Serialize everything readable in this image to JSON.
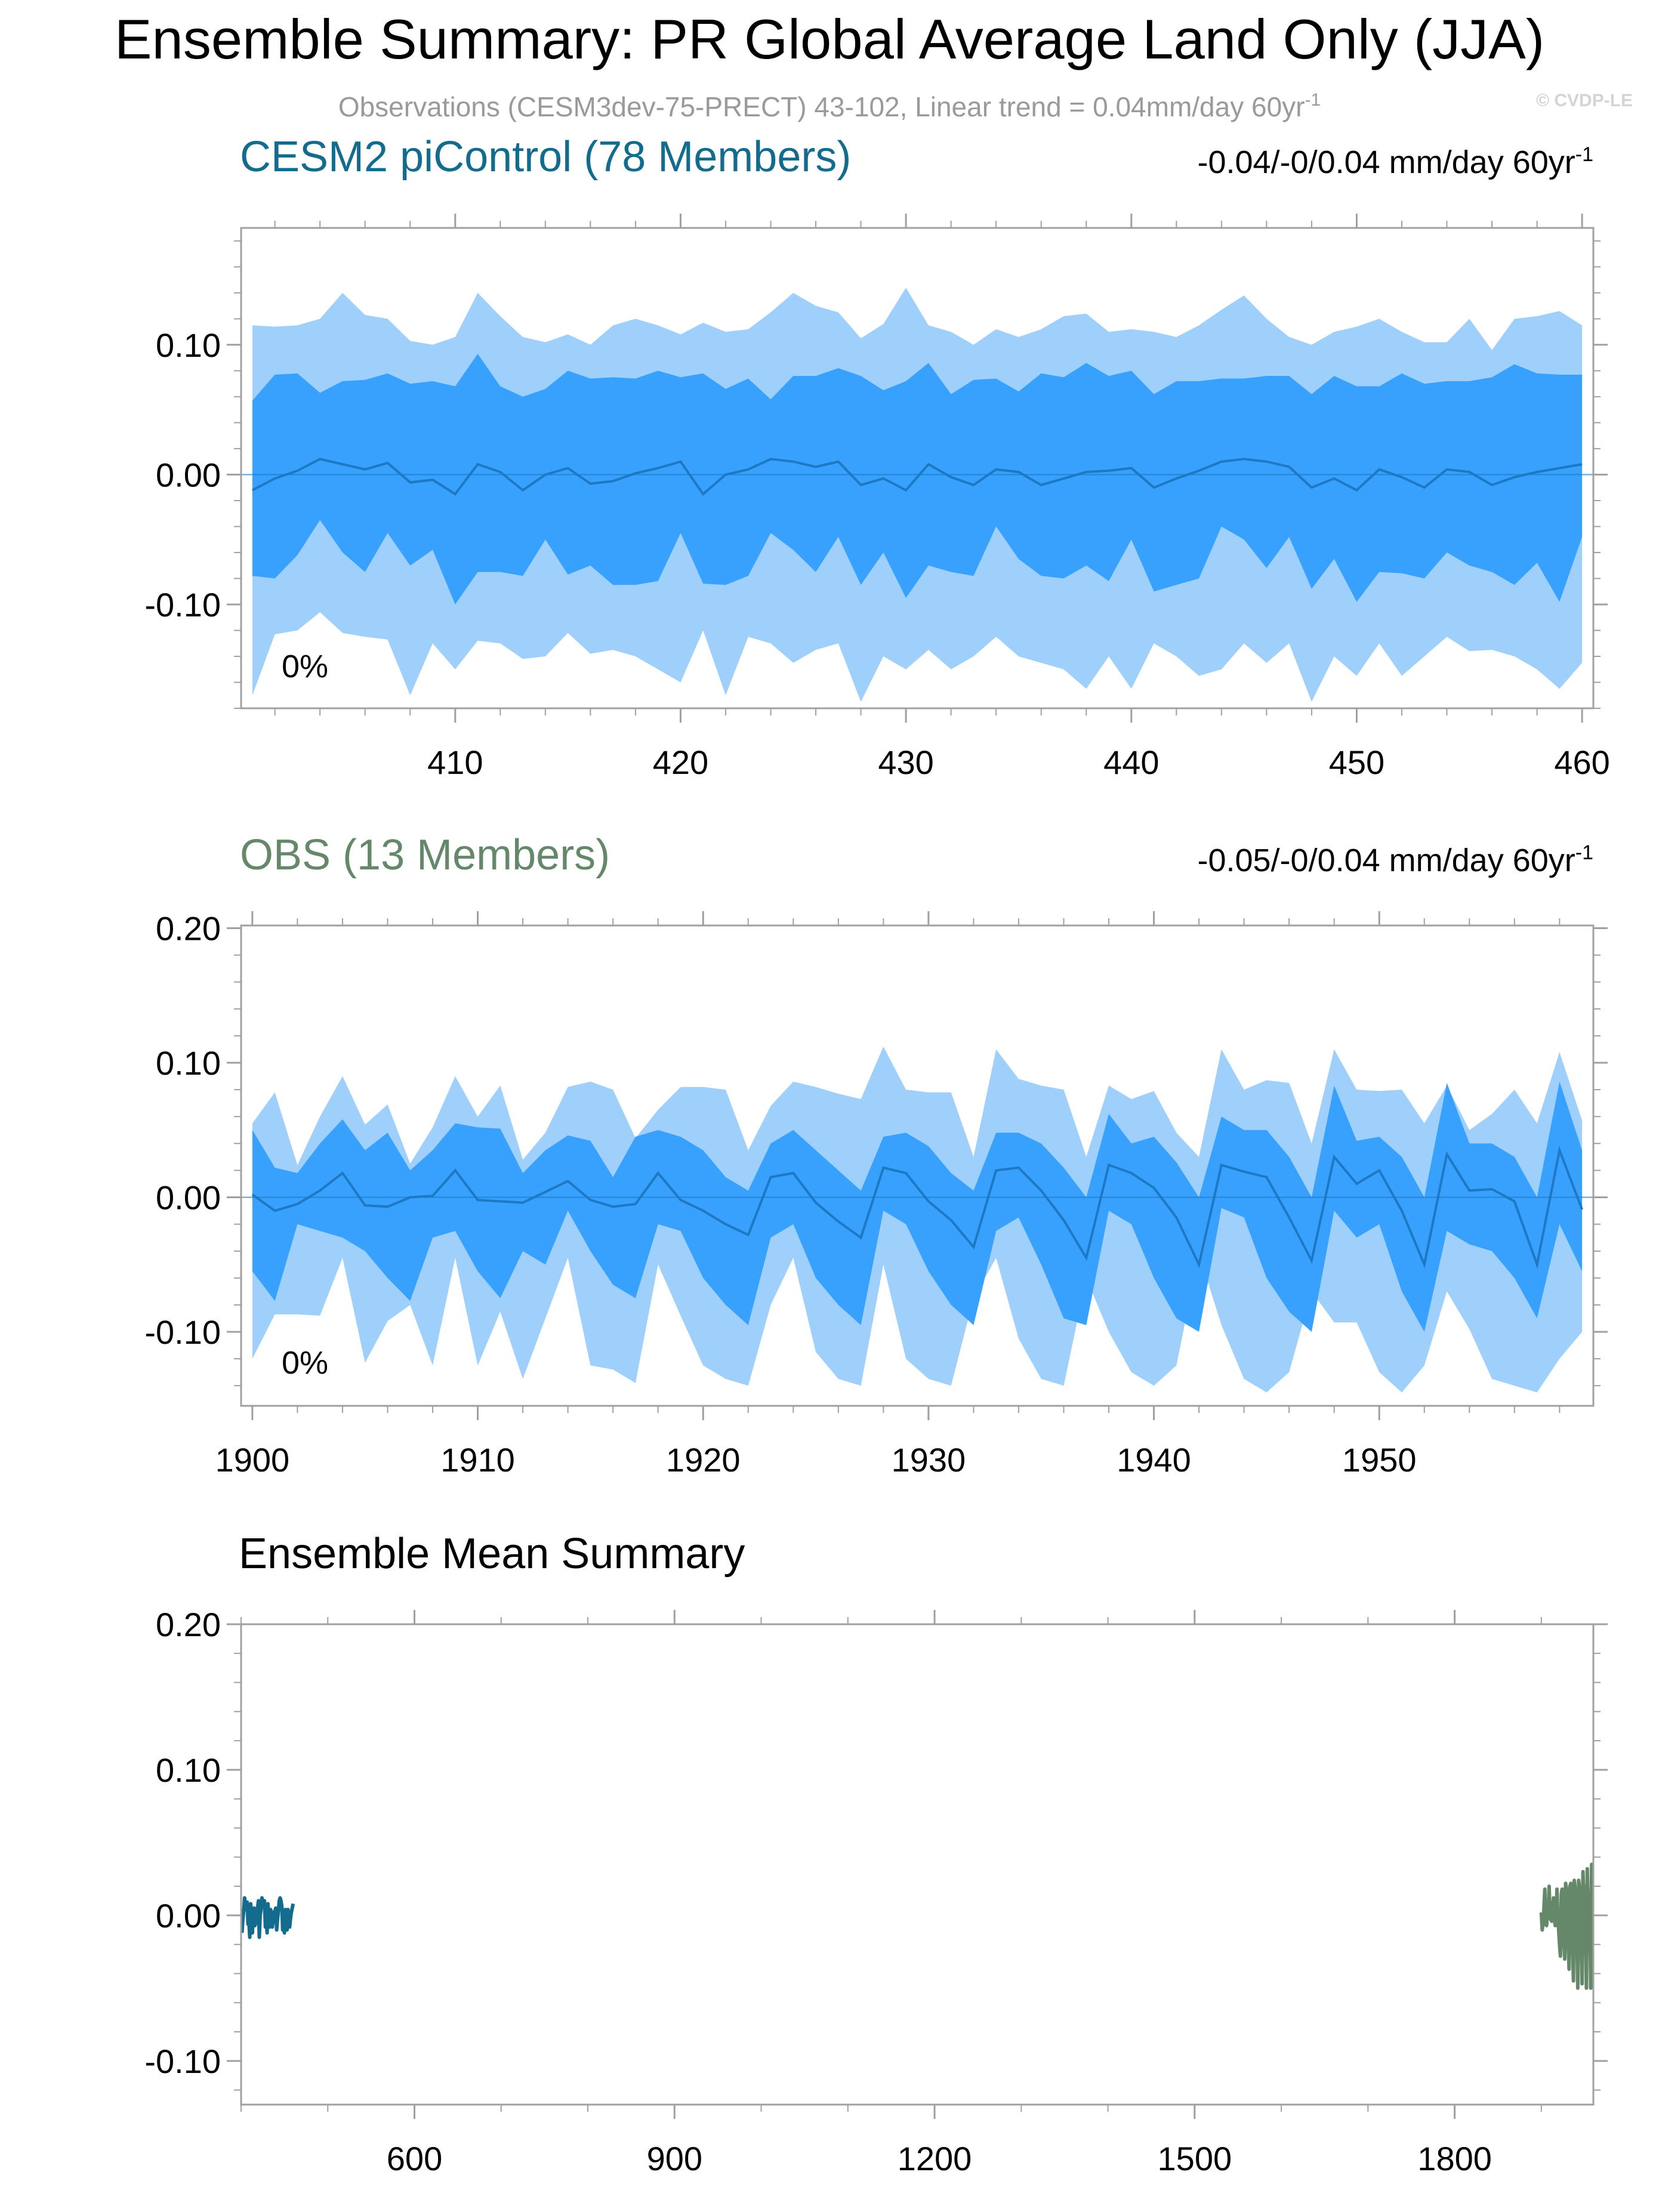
{
  "title": "Ensemble Summary: PR Global Average Land Only (JJA)",
  "subtitle": {
    "text": "Observations (CESM3dev-75-PRECT) 43-102, Linear trend = 0.04mm/day 60yr",
    "sup": "-1"
  },
  "watermark": "© CVDP-LE",
  "colors": {
    "band_outer": "#9fd0fc",
    "band_inner": "#38a1fd",
    "mean_line": "#1e79c4",
    "cesm_title": "#136b8e",
    "obs_title": "#66886a",
    "frame": "#a0a0a0",
    "subtitle": "#9a9a9a"
  },
  "chart_data": [
    {
      "type": "area",
      "name": "cesm2",
      "title": "CESM2 piControl (78 Members)",
      "title_color": "#136b8e",
      "trend_label": {
        "text": "-0.04/-0/0.04 mm/day 60yr",
        "sup": "-1"
      },
      "percent_label": "0%",
      "xlim": [
        400.5,
        460.5
      ],
      "ylim": [
        -0.18,
        0.19
      ],
      "xticks": [
        410,
        420,
        430,
        440,
        450,
        460
      ],
      "yticks": [
        -0.1,
        0.0,
        0.1
      ],
      "ytick_labels": [
        "-0.10",
        "0.00",
        "0.10"
      ],
      "xstart": 401,
      "p10": [
        -0.17,
        -0.123,
        -0.12,
        -0.106,
        -0.122,
        -0.125,
        -0.127,
        -0.17,
        -0.13,
        -0.15,
        -0.128,
        -0.13,
        -0.142,
        -0.14,
        -0.122,
        -0.138,
        -0.135,
        -0.14,
        -0.15,
        -0.16,
        -0.12,
        -0.17,
        -0.125,
        -0.13,
        -0.145,
        -0.135,
        -0.13,
        -0.175,
        -0.14,
        -0.15,
        -0.135,
        -0.15,
        -0.14,
        -0.125,
        -0.14,
        -0.145,
        -0.15,
        -0.165,
        -0.14,
        -0.165,
        -0.13,
        -0.14,
        -0.155,
        -0.15,
        -0.13,
        -0.145,
        -0.13,
        -0.175,
        -0.14,
        -0.155,
        -0.13,
        -0.155,
        -0.14,
        -0.125,
        -0.136,
        -0.135,
        -0.14,
        -0.15,
        -0.165,
        -0.145
      ],
      "p25": [
        -0.078,
        -0.08,
        -0.062,
        -0.035,
        -0.06,
        -0.075,
        -0.045,
        -0.07,
        -0.058,
        -0.1,
        -0.075,
        -0.075,
        -0.078,
        -0.05,
        -0.077,
        -0.07,
        -0.085,
        -0.085,
        -0.082,
        -0.045,
        -0.084,
        -0.085,
        -0.078,
        -0.045,
        -0.058,
        -0.075,
        -0.048,
        -0.085,
        -0.06,
        -0.095,
        -0.07,
        -0.075,
        -0.078,
        -0.04,
        -0.065,
        -0.078,
        -0.08,
        -0.07,
        -0.082,
        -0.05,
        -0.09,
        -0.085,
        -0.08,
        -0.04,
        -0.05,
        -0.072,
        -0.048,
        -0.088,
        -0.065,
        -0.098,
        -0.075,
        -0.076,
        -0.08,
        -0.06,
        -0.07,
        -0.075,
        -0.085,
        -0.068,
        -0.098,
        -0.048
      ],
      "mean": [
        -0.012,
        -0.003,
        0.003,
        0.012,
        0.008,
        0.004,
        0.009,
        -0.006,
        -0.004,
        -0.015,
        0.008,
        0.002,
        -0.012,
        0.0,
        0.005,
        -0.007,
        -0.005,
        0.001,
        0.005,
        0.01,
        -0.015,
        0.0,
        0.004,
        0.012,
        0.01,
        0.006,
        0.01,
        -0.008,
        -0.003,
        -0.012,
        0.008,
        -0.002,
        -0.008,
        0.004,
        0.002,
        -0.008,
        -0.003,
        0.002,
        0.003,
        0.005,
        -0.01,
        -0.003,
        0.003,
        0.01,
        0.012,
        0.01,
        0.006,
        -0.01,
        -0.003,
        -0.012,
        0.004,
        -0.002,
        -0.01,
        0.004,
        0.002,
        -0.008,
        -0.002,
        0.002,
        0.005,
        0.008
      ],
      "p75": [
        0.057,
        0.077,
        0.078,
        0.063,
        0.072,
        0.073,
        0.078,
        0.07,
        0.072,
        0.068,
        0.093,
        0.068,
        0.06,
        0.066,
        0.08,
        0.074,
        0.075,
        0.074,
        0.08,
        0.075,
        0.078,
        0.066,
        0.074,
        0.058,
        0.076,
        0.076,
        0.082,
        0.076,
        0.065,
        0.072,
        0.086,
        0.062,
        0.073,
        0.074,
        0.064,
        0.078,
        0.075,
        0.086,
        0.076,
        0.08,
        0.062,
        0.072,
        0.072,
        0.074,
        0.074,
        0.076,
        0.076,
        0.062,
        0.076,
        0.068,
        0.068,
        0.078,
        0.07,
        0.072,
        0.072,
        0.075,
        0.085,
        0.078,
        0.077,
        0.077
      ],
      "p90": [
        0.115,
        0.114,
        0.115,
        0.12,
        0.14,
        0.123,
        0.12,
        0.103,
        0.1,
        0.106,
        0.14,
        0.122,
        0.106,
        0.102,
        0.108,
        0.1,
        0.115,
        0.12,
        0.115,
        0.108,
        0.117,
        0.11,
        0.112,
        0.125,
        0.14,
        0.13,
        0.125,
        0.105,
        0.116,
        0.144,
        0.115,
        0.11,
        0.1,
        0.112,
        0.106,
        0.112,
        0.122,
        0.124,
        0.11,
        0.112,
        0.11,
        0.106,
        0.115,
        0.127,
        0.138,
        0.12,
        0.106,
        0.1,
        0.11,
        0.114,
        0.12,
        0.11,
        0.102,
        0.102,
        0.12,
        0.096,
        0.12,
        0.122,
        0.126,
        0.115
      ]
    },
    {
      "type": "area",
      "name": "obs",
      "title": "OBS (13 Members)",
      "title_color": "#66886a",
      "trend_label": {
        "text": "-0.05/-0/0.04 mm/day 60yr",
        "sup": "-1"
      },
      "percent_label": "0%",
      "xlim": [
        1899.5,
        1959.5
      ],
      "ylim": [
        -0.155,
        0.202
      ],
      "xticks": [
        1900,
        1910,
        1920,
        1930,
        1940,
        1950
      ],
      "yticks": [
        -0.1,
        0.0,
        0.1,
        0.2
      ],
      "ytick_labels": [
        "-0.10",
        "0.00",
        "0.10",
        "0.20"
      ],
      "xstart": 1900,
      "p10": [
        -0.12,
        -0.087,
        -0.087,
        -0.088,
        -0.045,
        -0.123,
        -0.092,
        -0.08,
        -0.125,
        -0.045,
        -0.125,
        -0.085,
        -0.135,
        -0.09,
        -0.045,
        -0.125,
        -0.128,
        -0.138,
        -0.05,
        -0.088,
        -0.125,
        -0.135,
        -0.14,
        -0.08,
        -0.045,
        -0.115,
        -0.135,
        -0.14,
        -0.05,
        -0.12,
        -0.135,
        -0.14,
        -0.075,
        -0.045,
        -0.105,
        -0.135,
        -0.14,
        -0.06,
        -0.1,
        -0.13,
        -0.14,
        -0.125,
        -0.042,
        -0.095,
        -0.135,
        -0.145,
        -0.13,
        -0.07,
        -0.093,
        -0.093,
        -0.13,
        -0.145,
        -0.125,
        -0.07,
        -0.098,
        -0.135,
        -0.14,
        -0.145,
        -0.12,
        -0.1
      ],
      "p25": [
        -0.055,
        -0.077,
        -0.02,
        -0.025,
        -0.03,
        -0.04,
        -0.06,
        -0.077,
        -0.03,
        -0.025,
        -0.055,
        -0.075,
        -0.04,
        -0.05,
        -0.01,
        -0.04,
        -0.065,
        -0.075,
        -0.02,
        -0.025,
        -0.06,
        -0.08,
        -0.095,
        -0.03,
        -0.02,
        -0.06,
        -0.08,
        -0.095,
        -0.01,
        -0.02,
        -0.055,
        -0.08,
        -0.095,
        -0.025,
        -0.015,
        -0.05,
        -0.09,
        -0.095,
        -0.01,
        -0.02,
        -0.06,
        -0.09,
        -0.1,
        -0.008,
        -0.015,
        -0.06,
        -0.085,
        -0.1,
        -0.01,
        -0.03,
        -0.02,
        -0.07,
        -0.1,
        -0.025,
        -0.035,
        -0.04,
        -0.06,
        -0.09,
        -0.02,
        -0.055
      ],
      "mean": [
        0.002,
        -0.01,
        -0.005,
        0.005,
        0.018,
        -0.006,
        -0.007,
        0.0,
        0.001,
        0.02,
        -0.002,
        -0.003,
        -0.004,
        0.004,
        0.012,
        -0.002,
        -0.007,
        -0.005,
        0.018,
        -0.002,
        -0.01,
        -0.02,
        -0.028,
        0.015,
        0.018,
        -0.004,
        -0.018,
        -0.03,
        0.022,
        0.018,
        -0.003,
        -0.017,
        -0.037,
        0.02,
        0.022,
        0.005,
        -0.017,
        -0.045,
        0.024,
        0.018,
        0.007,
        -0.015,
        -0.05,
        0.024,
        0.019,
        0.015,
        -0.015,
        -0.047,
        0.03,
        0.01,
        0.02,
        -0.01,
        -0.05,
        0.032,
        0.005,
        0.006,
        -0.003,
        -0.05,
        0.035,
        -0.009
      ],
      "p75": [
        0.05,
        0.022,
        0.018,
        0.04,
        0.058,
        0.035,
        0.048,
        0.02,
        0.035,
        0.055,
        0.052,
        0.051,
        0.018,
        0.035,
        0.046,
        0.042,
        0.015,
        0.045,
        0.05,
        0.045,
        0.035,
        0.015,
        0.005,
        0.04,
        0.05,
        0.035,
        0.02,
        0.005,
        0.045,
        0.048,
        0.038,
        0.018,
        0.005,
        0.048,
        0.048,
        0.04,
        0.022,
        0.0,
        0.062,
        0.04,
        0.045,
        0.026,
        0.0,
        0.06,
        0.05,
        0.05,
        0.03,
        0.0,
        0.083,
        0.042,
        0.045,
        0.03,
        0.0,
        0.085,
        0.04,
        0.04,
        0.03,
        0.0,
        0.086,
        0.035
      ],
      "p90": [
        0.055,
        0.078,
        0.024,
        0.06,
        0.09,
        0.054,
        0.069,
        0.025,
        0.052,
        0.09,
        0.06,
        0.083,
        0.028,
        0.048,
        0.082,
        0.086,
        0.08,
        0.044,
        0.065,
        0.082,
        0.082,
        0.08,
        0.035,
        0.068,
        0.086,
        0.082,
        0.077,
        0.073,
        0.112,
        0.08,
        0.078,
        0.078,
        0.03,
        0.11,
        0.088,
        0.083,
        0.08,
        0.03,
        0.083,
        0.073,
        0.079,
        0.048,
        0.03,
        0.11,
        0.08,
        0.087,
        0.085,
        0.04,
        0.11,
        0.08,
        0.079,
        0.08,
        0.055,
        0.083,
        0.05,
        0.062,
        0.08,
        0.055,
        0.108,
        0.057
      ]
    },
    {
      "type": "line",
      "name": "ensmean",
      "title": "Ensemble Mean Summary",
      "xlim": [
        400,
        1960
      ],
      "ylim": [
        -0.13,
        0.2
      ],
      "xticks": [
        600,
        900,
        1200,
        1500,
        1800
      ],
      "yticks": [
        -0.1,
        0.0,
        0.1,
        0.2
      ],
      "ytick_labels": [
        "-0.10",
        "0.00",
        "0.10",
        "0.20"
      ],
      "series": [
        {
          "color": "#136b8e",
          "xstart": 401,
          "values": "cesm2.mean"
        },
        {
          "color": "#66886a",
          "xstart": 1900,
          "values": "obs.mean"
        }
      ]
    }
  ]
}
